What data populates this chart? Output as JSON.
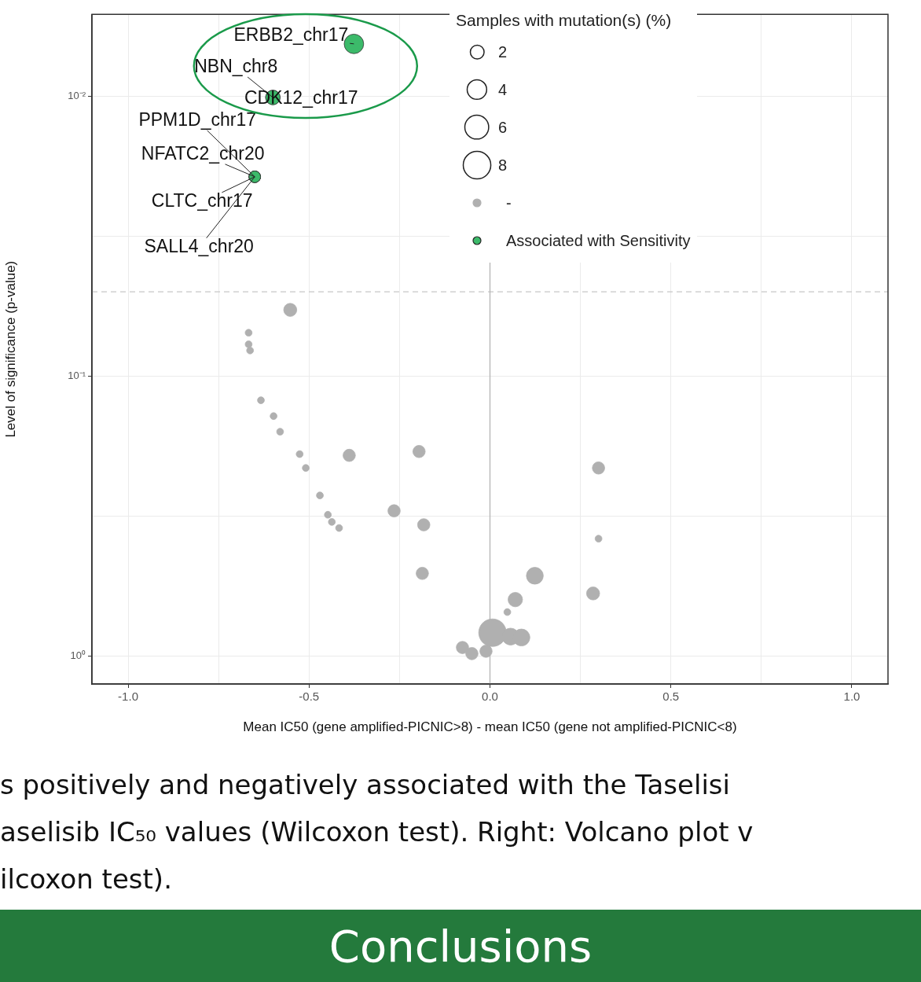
{
  "chart_data": {
    "type": "bubble",
    "xlabel": "Mean IC50 (gene amplified-PICNIC>8) - mean IC50 (gene not amplified-PICNIC<8)",
    "ylabel": "Level of significance (p-value)",
    "legend_title": "Samples with mutation(s) (%)",
    "size_legend": [
      2,
      4,
      6,
      8
    ],
    "xlim": [
      -1.1,
      1.1
    ],
    "xticks": [
      {
        "value": -1,
        "label": "-1.0"
      },
      {
        "value": -0.75,
        "label": null
      },
      {
        "value": -0.5,
        "label": "-0.5"
      },
      {
        "value": -0.25,
        "label": null
      },
      {
        "value": 0,
        "label": "0.0"
      },
      {
        "value": 0.25,
        "label": null
      },
      {
        "value": 0.5,
        "label": "0.5"
      },
      {
        "value": 0.75,
        "label": null
      },
      {
        "value": 1,
        "label": "1.0"
      }
    ],
    "ylim": [
      1.26,
      0.0051
    ],
    "yticks": [
      {
        "value": 1,
        "label": "10⁰"
      },
      {
        "value": 0.316,
        "label": null
      },
      {
        "value": 0.1,
        "label": "10⁻¹"
      },
      {
        "value": 0.0316,
        "label": null
      },
      {
        "value": 0.01,
        "label": "10⁻²"
      }
    ],
    "log": "y",
    "grid": true,
    "legend": "top right",
    "ref_lines": [
      {
        "axis": "y",
        "value": 0.05,
        "color": "#c8c8c8",
        "line_style": "dashed"
      },
      {
        "axis": "x",
        "value": 0,
        "color": "#b4b4b4",
        "line_style": "solid"
      }
    ],
    "series": [
      {
        "name": "-",
        "color": "#b0b0b0",
        "x": [
          -0.552,
          -0.667,
          -0.667,
          -0.663,
          -0.633,
          -0.598,
          -0.58,
          -0.526,
          -0.509,
          -0.47,
          -0.448,
          -0.437,
          -0.417,
          -0.389,
          -0.196,
          -0.265,
          -0.183,
          -0.187,
          0.3,
          0.3,
          0.124,
          0.07,
          0.048,
          0.285,
          0.007,
          0.057,
          0.087,
          -0.076,
          -0.05,
          -0.011
        ],
        "values": [
          0.058,
          0.07,
          0.077,
          0.081,
          0.122,
          0.139,
          0.158,
          0.19,
          0.213,
          0.267,
          0.313,
          0.332,
          0.349,
          0.192,
          0.186,
          0.303,
          0.34,
          0.507,
          0.213,
          0.381,
          0.517,
          0.629,
          0.697,
          0.598,
          0.826,
          0.853,
          0.859,
          0.933,
          0.981,
          0.962
        ],
        "sizes": [
          1.8,
          0.5,
          0.5,
          0.5,
          0.5,
          0.5,
          0.5,
          0.5,
          0.5,
          0.5,
          0.5,
          0.5,
          0.5,
          1.6,
          1.6,
          1.6,
          1.6,
          1.6,
          1.6,
          0.5,
          3,
          2.2,
          0.5,
          1.8,
          8,
          3,
          3,
          1.6,
          1.6,
          1.6
        ]
      },
      {
        "name": "Associated with Sensitivity",
        "color": "#3cba6a",
        "x": [
          -0.376,
          -0.6,
          -0.6,
          -0.65,
          -0.65,
          -0.65,
          -0.65
        ],
        "values": [
          0.0065,
          0.0101,
          0.0101,
          0.0194,
          0.0194,
          0.0194,
          0.0194
        ],
        "sizes": [
          4,
          2.2,
          2.2,
          1.4,
          1.4,
          1.4,
          1.4
        ]
      }
    ],
    "annotations": [
      {
        "text": "ERBB2_chr17",
        "x": -0.376,
        "y": 0.0065
      },
      {
        "text": "NBN_chr8",
        "x": -0.6,
        "y": 0.0101
      },
      {
        "text": "CDK12_chr17",
        "x": -0.6,
        "y": 0.0101
      },
      {
        "text": "PPM1D_chr17",
        "x": -0.65,
        "y": 0.0194
      },
      {
        "text": "NFATC2_chr20",
        "x": -0.65,
        "y": 0.0194
      },
      {
        "text": "CLTC_chr17",
        "x": -0.65,
        "y": 0.0194
      },
      {
        "text": "SALL4_chr20",
        "x": -0.65,
        "y": 0.0194
      },
      "s positively and negatively associated with the Taselisi",
      "aselisib IC₅₀ values (Wilcoxon test). Right: Volcano plot v",
      "ilcoxon test).",
      "Conclusions"
    ]
  }
}
